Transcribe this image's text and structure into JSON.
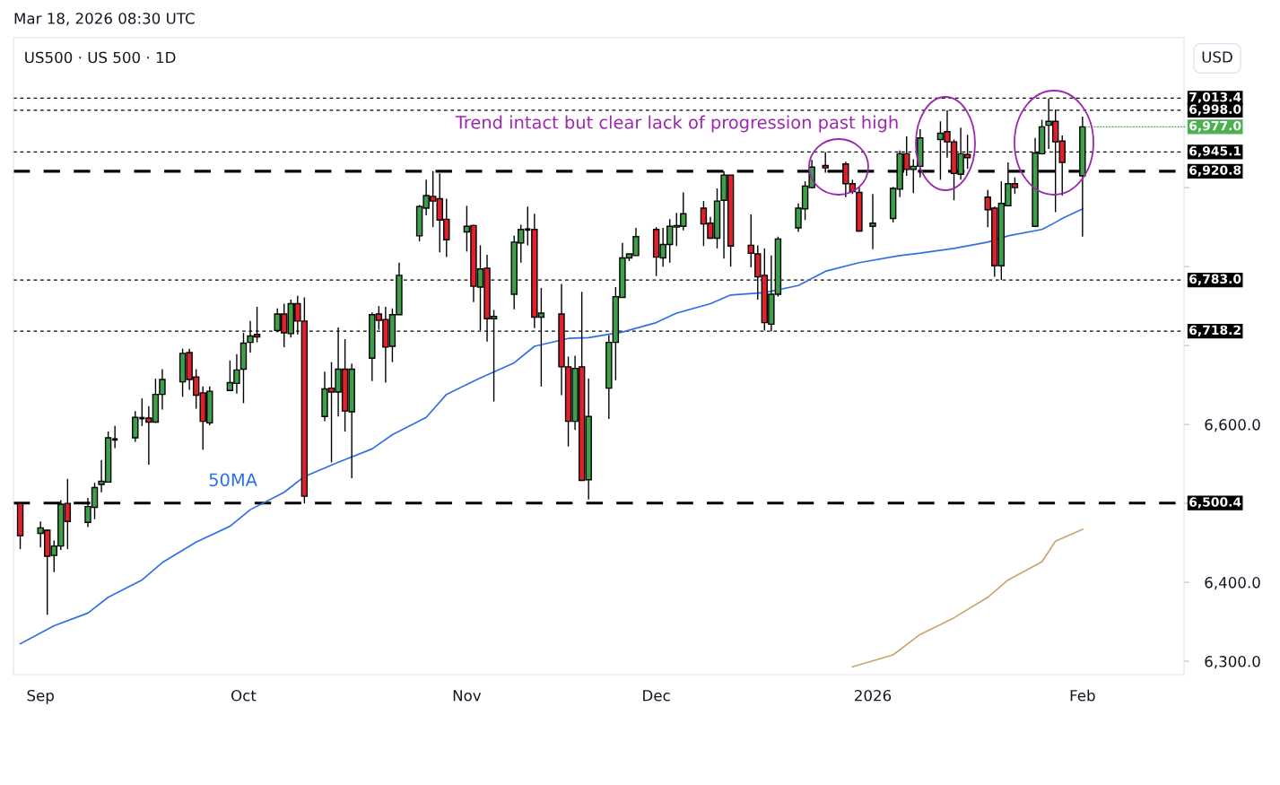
{
  "chart_data": {
    "type": "candlestick",
    "title": "US500 · US 500 · 1D",
    "ylabel": "USD",
    "annotations": [
      "Mar 18, 2026 08:30 UTC",
      "Trend intact but clear lack of progression past high",
      {
        "text": "6,977.0",
        "x": "2026-02-02",
        "y": 6977.0
      }
    ],
    "x": [
      "2025-08-29",
      "2025-09-01",
      "2025-09-02",
      "2025-09-03",
      "2025-09-04",
      "2025-09-05",
      "2025-09-08",
      "2025-09-09",
      "2025-09-10",
      "2025-09-11",
      "2025-09-12",
      "2025-09-15",
      "2025-09-16",
      "2025-09-17",
      "2025-09-18",
      "2025-09-19",
      "2025-09-22",
      "2025-09-23",
      "2025-09-24",
      "2025-09-25",
      "2025-09-26",
      "2025-09-29",
      "2025-09-30",
      "2025-10-01",
      "2025-10-02",
      "2025-10-03",
      "2025-10-06",
      "2025-10-07",
      "2025-10-08",
      "2025-10-09",
      "2025-10-10",
      "2025-10-13",
      "2025-10-14",
      "2025-10-15",
      "2025-10-16",
      "2025-10-17",
      "2025-10-20",
      "2025-10-21",
      "2025-10-22",
      "2025-10-23",
      "2025-10-24",
      "2025-10-27",
      "2025-10-28",
      "2025-10-29",
      "2025-10-30",
      "2025-10-31",
      "2025-11-03",
      "2025-11-04",
      "2025-11-05",
      "2025-11-06",
      "2025-11-07",
      "2025-11-10",
      "2025-11-11",
      "2025-11-12",
      "2025-11-13",
      "2025-11-14",
      "2025-11-17",
      "2025-11-18",
      "2025-11-19",
      "2025-11-20",
      "2025-11-21",
      "2025-11-24",
      "2025-11-25",
      "2025-11-26",
      "2025-11-27",
      "2025-11-28",
      "2025-12-01",
      "2025-12-02",
      "2025-12-03",
      "2025-12-04",
      "2025-12-05",
      "2025-12-08",
      "2025-12-09",
      "2025-12-10",
      "2025-12-11",
      "2025-12-12",
      "2025-12-15",
      "2025-12-16",
      "2025-12-17",
      "2025-12-18",
      "2025-12-19",
      "2025-12-22",
      "2025-12-23",
      "2025-12-24",
      "2025-12-26",
      "2025-12-29",
      "2025-12-30",
      "2025-12-31",
      "2026-01-02",
      "2026-01-05",
      "2026-01-06",
      "2026-01-07",
      "2026-01-08",
      "2026-01-09",
      "2026-01-12",
      "2026-01-13",
      "2026-01-14",
      "2026-01-15",
      "2026-01-16",
      "2026-01-19",
      "2026-01-20",
      "2026-01-21",
      "2026-01-22",
      "2026-01-23",
      "2026-01-26",
      "2026-01-27",
      "2026-01-28",
      "2026-01-29",
      "2026-01-30",
      "2026-02-02"
    ],
    "ohlc": [
      [
        6500,
        6501,
        6442,
        6459
      ],
      [
        6462,
        6477,
        6444,
        6469
      ],
      [
        6466,
        6467,
        6359,
        6433
      ],
      [
        6434,
        6453,
        6413,
        6446
      ],
      [
        6446,
        6504,
        6441,
        6499
      ],
      [
        6500,
        6531,
        6442,
        6477
      ],
      [
        6476,
        6507,
        6470,
        6496
      ],
      [
        6495,
        6526,
        6480,
        6520
      ],
      [
        6524,
        6555,
        6514,
        6528
      ],
      [
        6527,
        6591,
        6527,
        6583
      ],
      [
        6581,
        6598,
        6570,
        6581
      ],
      [
        6583,
        6617,
        6578,
        6609
      ],
      [
        6608,
        6633,
        6598,
        6608
      ],
      [
        6608,
        6623,
        6549,
        6603
      ],
      [
        6603,
        6658,
        6602,
        6638
      ],
      [
        6638,
        6670,
        6619,
        6657
      ],
      [
        6654,
        6696,
        6635,
        6690
      ],
      [
        6691,
        6696,
        6644,
        6657
      ],
      [
        6660,
        6670,
        6620,
        6637
      ],
      [
        6640,
        6648,
        6568,
        6604
      ],
      [
        6602,
        6648,
        6599,
        6642
      ],
      [
        6643,
        6681,
        6643,
        6653
      ],
      [
        6652,
        6689,
        6639,
        6669
      ],
      [
        6670,
        6716,
        6627,
        6703
      ],
      [
        6704,
        6731,
        6691,
        6712
      ],
      [
        6714,
        6749,
        6704,
        6711
      ],
      [
        6719,
        6747,
        6717,
        6740
      ],
      [
        6740,
        6753,
        6698,
        6716
      ],
      [
        6715,
        6758,
        6710,
        6753
      ],
      [
        6753,
        6763,
        6714,
        6731
      ],
      [
        6731,
        6761,
        6500,
        6509
      ],
      [
        6610,
        6667,
        6604,
        6645
      ],
      [
        6646,
        6679,
        6552,
        6641
      ],
      [
        6641,
        6723,
        6610,
        6670
      ],
      [
        6670,
        6708,
        6591,
        6617
      ],
      [
        6616,
        6677,
        6532,
        6670
      ],
      [
        6684,
        6742,
        6655,
        6739
      ],
      [
        6740,
        6750,
        6720,
        6732
      ],
      [
        6733,
        6749,
        6653,
        6698
      ],
      [
        6699,
        6747,
        6679,
        6739
      ],
      [
        6739,
        6805,
        6739,
        6789
      ],
      [
        6839,
        6878,
        6832,
        6876
      ],
      [
        6874,
        6910,
        6865,
        6890
      ],
      [
        6889,
        6921,
        6850,
        6883
      ],
      [
        6886,
        6918,
        6818,
        6859
      ],
      [
        6860,
        6886,
        6812,
        6834
      ],
      [
        6844,
        6877,
        6819,
        6851
      ],
      [
        6852,
        6853,
        6755,
        6775
      ],
      [
        6774,
        6827,
        6719,
        6797
      ],
      [
        6798,
        6815,
        6705,
        6734
      ],
      [
        6734,
        6745,
        6629,
        6737
      ],
      [
        6765,
        6839,
        6746,
        6831
      ],
      [
        6830,
        6853,
        6805,
        6847
      ],
      [
        6847,
        6876,
        6827,
        6847
      ],
      [
        6847,
        6867,
        6722,
        6736
      ],
      [
        6736,
        6773,
        6648,
        6741
      ],
      [
        6740,
        6778,
        6637,
        6673
      ],
      [
        6673,
        6686,
        6572,
        6604
      ],
      [
        6604,
        6687,
        6593,
        6671
      ],
      [
        6673,
        6768,
        6529,
        6529
      ],
      [
        6530,
        6658,
        6505,
        6610
      ],
      [
        6646,
        6713,
        6607,
        6704
      ],
      [
        6704,
        6774,
        6656,
        6762
      ],
      [
        6761,
        6830,
        6761,
        6811
      ],
      [
        6811,
        6816,
        6807,
        6816
      ],
      [
        6814,
        6849,
        6814,
        6838
      ],
      [
        6847,
        6850,
        6788,
        6812
      ],
      [
        6811,
        6849,
        6800,
        6828
      ],
      [
        6828,
        6860,
        6805,
        6851
      ],
      [
        6850,
        6868,
        6826,
        6852
      ],
      [
        6851,
        6894,
        6846,
        6867
      ],
      [
        6874,
        6883,
        6826,
        6854
      ],
      [
        6855,
        6863,
        6835,
        6836
      ],
      [
        6836,
        6899,
        6823,
        6883
      ],
      [
        6884,
        6921,
        6810,
        6916
      ],
      [
        6916,
        6916,
        6800,
        6826
      ],
      [
        6827,
        6866,
        6799,
        6817
      ],
      [
        6816,
        6827,
        6758,
        6787
      ],
      [
        6789,
        6823,
        6719,
        6729
      ],
      [
        6727,
        6814,
        6718,
        6765
      ],
      [
        6765,
        6838,
        6762,
        6835
      ],
      [
        6849,
        6880,
        6844,
        6874
      ],
      [
        6873,
        6908,
        6859,
        6902
      ],
      [
        6900,
        6935,
        6899,
        6926
      ],
      [
        6928,
        6945,
        6919,
        6925
      ],
      [
        6930,
        6933,
        6888,
        6905
      ],
      [
        6905,
        6910,
        6892,
        6895
      ],
      [
        6894,
        6901,
        6844,
        6845
      ],
      [
        6851,
        6892,
        6822,
        6855
      ],
      [
        6861,
        6901,
        6856,
        6899
      ],
      [
        6898,
        6947,
        6888,
        6943
      ],
      [
        6943,
        6965,
        6915,
        6923
      ],
      [
        6923,
        6936,
        6893,
        6927
      ],
      [
        6927,
        6974,
        6913,
        6963
      ],
      [
        6961,
        6984,
        6910,
        6969
      ],
      [
        6971,
        6998,
        6938,
        6958
      ],
      [
        6958,
        6961,
        6884,
        6918
      ],
      [
        6917,
        6976,
        6910,
        6943
      ],
      [
        6942,
        6967,
        6924,
        6938
      ],
      [
        6888,
        6897,
        6850,
        6872
      ],
      [
        6874,
        6876,
        6787,
        6801
      ],
      [
        6801,
        6908,
        6783,
        6880
      ],
      [
        6877,
        6932,
        6877,
        6905
      ],
      [
        6905,
        6913,
        6892,
        6900
      ],
      [
        6851,
        6963,
        6850,
        6944
      ],
      [
        6943,
        6986,
        6942,
        6977
      ],
      [
        6979,
        7013,
        6949,
        6984
      ],
      [
        6984,
        6999,
        6869,
        6958
      ],
      [
        6959,
        6966,
        6890,
        6932
      ],
      [
        6915,
        6990,
        6838,
        6977
      ]
    ],
    "colors": [
      "#e0202b",
      "#3f9e4a",
      "#e0202b",
      "#3f9e4a",
      "#3f9e4a",
      "#e0202b",
      "#3f9e4a",
      "#3f9e4a",
      "#3f9e4a",
      "#3f9e4a",
      "#000000",
      "#3f9e4a",
      "#000000",
      "#e0202b",
      "#3f9e4a",
      "#3f9e4a",
      "#3f9e4a",
      "#e0202b",
      "#e0202b",
      "#e0202b",
      "#3f9e4a",
      "#3f9e4a",
      "#3f9e4a",
      "#3f9e4a",
      "#3f9e4a",
      "#e0202b",
      "#3f9e4a",
      "#e0202b",
      "#3f9e4a",
      "#e0202b",
      "#e0202b",
      "#3f9e4a",
      "#e0202b",
      "#3f9e4a",
      "#e0202b",
      "#3f9e4a",
      "#3f9e4a",
      "#e0202b",
      "#e0202b",
      "#3f9e4a",
      "#3f9e4a",
      "#3f9e4a",
      "#3f9e4a",
      "#e0202b",
      "#e0202b",
      "#e0202b",
      "#3f9e4a",
      "#e0202b",
      "#3f9e4a",
      "#e0202b",
      "#3f9e4a",
      "#3f9e4a",
      "#3f9e4a",
      "#000000",
      "#e0202b",
      "#3f9e4a",
      "#e0202b",
      "#e0202b",
      "#3f9e4a",
      "#e0202b",
      "#3f9e4a",
      "#3f9e4a",
      "#3f9e4a",
      "#3f9e4a",
      "#3f9e4a",
      "#3f9e4a",
      "#e0202b",
      "#3f9e4a",
      "#3f9e4a",
      "#3f9e4a",
      "#3f9e4a",
      "#e0202b",
      "#e0202b",
      "#3f9e4a",
      "#3f9e4a",
      "#e0202b",
      "#e0202b",
      "#e0202b",
      "#e0202b",
      "#3f9e4a",
      "#3f9e4a",
      "#3f9e4a",
      "#3f9e4a",
      "#3f9e4a",
      "#e0202b",
      "#e0202b",
      "#e0202b",
      "#e0202b",
      "#3f9e4a",
      "#3f9e4a",
      "#3f9e4a",
      "#e0202b",
      "#3f9e4a",
      "#3f9e4a",
      "#3f9e4a",
      "#e0202b",
      "#e0202b",
      "#3f9e4a",
      "#e0202b",
      "#e0202b",
      "#e0202b",
      "#3f9e4a",
      "#3f9e4a",
      "#e0202b",
      "#3f9e4a",
      "#3f9e4a",
      "#3f9e4a",
      "#e0202b",
      "#e0202b",
      "#3f9e4a"
    ],
    "series": [
      {
        "type": "line",
        "name": "50MA",
        "color": "#2f6fe4",
        "x": [
          "2025-08-29",
          "2025-09-03",
          "2025-09-08",
          "2025-09-11",
          "2025-09-16",
          "2025-09-19",
          "2025-09-24",
          "2025-09-29",
          "2025-10-02",
          "2025-10-07",
          "2025-10-10",
          "2025-10-15",
          "2025-10-20",
          "2025-10-23",
          "2025-10-28",
          "2025-10-31",
          "2025-11-05",
          "2025-11-10",
          "2025-11-13",
          "2025-11-18",
          "2025-11-21",
          "2025-11-26",
          "2025-12-01",
          "2025-12-04",
          "2025-12-09",
          "2025-12-12",
          "2025-12-17",
          "2025-12-22",
          "2025-12-26",
          "2025-12-31",
          "2026-01-06",
          "2026-01-09",
          "2026-01-14",
          "2026-01-19",
          "2026-01-22",
          "2026-01-27",
          "2026-01-29",
          "2026-01-30",
          "2026-02-02"
        ],
        "values": [
          6322,
          6345,
          6361,
          6381,
          6403,
          6425,
          6451,
          6471,
          6492,
          6514,
          6534,
          6552,
          6569,
          6587,
          6609,
          6638,
          6659,
          6678,
          6699,
          6709,
          6710,
          6717,
          6729,
          6741,
          6753,
          6764,
          6767,
          6776,
          6794,
          6805,
          6814,
          6817,
          6823,
          6831,
          6839,
          6847,
          6856,
          6861,
          6873
        ]
      },
      {
        "type": "line",
        "color": "#c8a46e",
        "x": [
          "2025-12-30",
          "2026-01-05",
          "2026-01-09",
          "2026-01-14",
          "2026-01-19",
          "2026-01-22",
          "2026-01-27",
          "2026-01-29",
          "2026-02-02"
        ],
        "values": [
          6293,
          6308,
          6334,
          6355,
          6381,
          6403,
          6426,
          6452,
          6467
        ]
      }
    ],
    "ref_lines": [
      {
        "axis": "y",
        "value": 7013.4,
        "label": "7,013.4",
        "color": "#000000",
        "line_style": "dotted"
      },
      {
        "axis": "y",
        "value": 6998.0,
        "label": "6,998.0",
        "color": "#000000",
        "line_style": "dotted"
      },
      {
        "axis": "y",
        "value": 6945.1,
        "label": "6,945.1",
        "color": "#000000",
        "line_style": "dotted"
      },
      {
        "axis": "y",
        "value": 6920.8,
        "label": "6,920.8",
        "color": "#000000",
        "line_style": "dashed"
      },
      {
        "axis": "y",
        "value": 6783.0,
        "label": "6,783.0",
        "color": "#000000",
        "line_style": "dotted"
      },
      {
        "axis": "y",
        "value": 6718.2,
        "label": "6,718.2",
        "color": "#000000",
        "line_style": "dotted"
      },
      {
        "axis": "y",
        "value": 6500.4,
        "label": "6,500.4",
        "color": "#000000",
        "line_style": "dashed"
      }
    ],
    "xlim": [
      "2025-08-28",
      "2026-02-17"
    ],
    "xticks": [
      {
        "value": "2025-09-01",
        "label": "Sep"
      },
      {
        "value": "2025-10-01",
        "label": "Oct"
      },
      {
        "value": "2025-11-03",
        "label": "Nov"
      },
      {
        "value": "2025-12-01",
        "label": "Dec"
      },
      {
        "value": "2026-01-02",
        "label": "2026"
      },
      {
        "value": "2026-02-02",
        "label": "Feb"
      }
    ],
    "ylim": [
      6283,
      7090
    ],
    "yticks": [
      {
        "value": 6300,
        "label": "6,300.0"
      },
      {
        "value": 6400,
        "label": "6,400.0"
      },
      {
        "value": 6500,
        "label": null
      },
      {
        "value": 6600,
        "label": "6,600.0"
      },
      {
        "value": 6700,
        "label": null
      },
      {
        "value": 6800,
        "label": null
      },
      {
        "value": 6900,
        "label": null
      }
    ],
    "grid": false,
    "legend": false
  }
}
